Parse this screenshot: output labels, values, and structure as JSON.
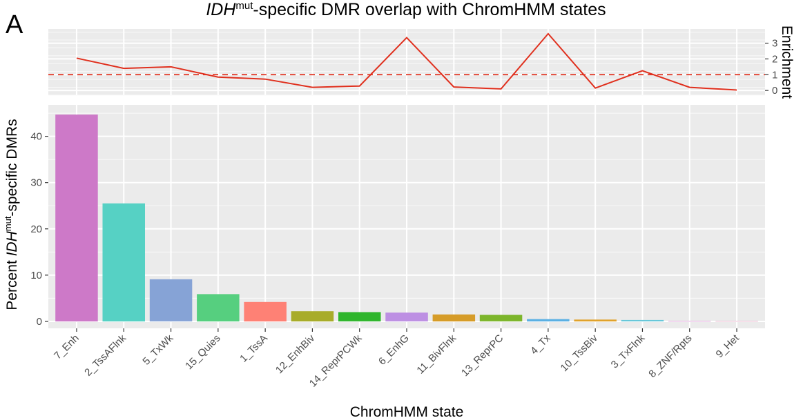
{
  "panel_label": "A",
  "title": {
    "italic": "IDH",
    "sup": "mut",
    "rest": "-specific DMR overlap with ChromHMM states"
  },
  "chart_data": [
    {
      "type": "line",
      "name": "enrichment",
      "categories": [
        "7_Enh",
        "2_TssAFlnk",
        "5_TxWk",
        "15_Quies",
        "1_TssA",
        "12_EnhBiv",
        "14_ReprPCWk",
        "6_EnhG",
        "11_BivFlnk",
        "13_ReprPC",
        "4_Tx",
        "10_TssBiv",
        "3_TxFlnk",
        "8_ZNF/Rpts",
        "9_Het"
      ],
      "values": [
        2.05,
        1.4,
        1.5,
        0.85,
        0.72,
        0.2,
        0.28,
        3.35,
        0.22,
        0.1,
        3.6,
        0.15,
        1.25,
        0.2,
        0.03
      ],
      "reference_line": {
        "value": 1,
        "style": "dashed"
      },
      "line_color": "#e0301e",
      "ylabel": "Enrichment",
      "yticks": [
        0,
        1,
        2,
        3
      ],
      "ylim": [
        -0.3,
        3.9
      ],
      "grid": true
    },
    {
      "type": "bar",
      "categories": [
        "7_Enh",
        "2_TssAFlnk",
        "5_TxWk",
        "15_Quies",
        "1_TssA",
        "12_EnhBiv",
        "14_ReprPCWk",
        "6_EnhG",
        "11_BivFlnk",
        "13_ReprPC",
        "4_Tx",
        "10_TssBiv",
        "3_TxFlnk",
        "8_ZNF/Rpts",
        "9_Het"
      ],
      "values": [
        44.7,
        25.5,
        9.1,
        5.9,
        4.2,
        2.2,
        2.0,
        1.9,
        1.5,
        1.4,
        0.5,
        0.4,
        0.3,
        0.1,
        0.1
      ],
      "colors": [
        "#cd79c8",
        "#56d1c4",
        "#86a3d6",
        "#56cf7f",
        "#fe8175",
        "#a8ac2a",
        "#2fb52c",
        "#bd8fe3",
        "#d69c28",
        "#7cb52b",
        "#5bb0e3",
        "#e0a22b",
        "#66c6d8",
        "#d890d3",
        "#e3a4c2"
      ],
      "xlabel": "ChromHMM state",
      "ylabel": {
        "prefix": "Percent ",
        "italic": "IDH",
        "sup": "mut",
        "suffix": "-specific DMRs"
      },
      "yticks": [
        0,
        10,
        20,
        30,
        40
      ],
      "ylim": [
        -1.5,
        46.8
      ],
      "grid": true
    }
  ]
}
